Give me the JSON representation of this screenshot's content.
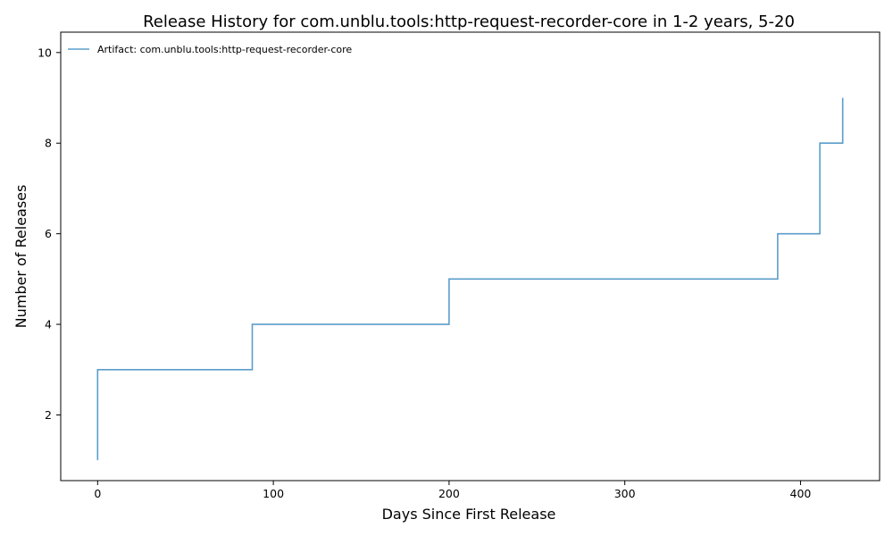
{
  "chart_data": {
    "type": "line",
    "step": "post",
    "title": "Release History for com.unblu.tools:http-request-recorder-core in 1-2 years, 5-20",
    "xlabel": "Days Since First Release",
    "ylabel": "Number of Releases",
    "xlim": [
      -21,
      445
    ],
    "ylim": [
      0.55,
      10.45
    ],
    "xticks": [
      0,
      100,
      200,
      300,
      400
    ],
    "yticks": [
      2,
      4,
      6,
      8,
      10
    ],
    "grid": false,
    "legend_position": "top-left",
    "series": [
      {
        "name": "Artifact: com.unblu.tools:http-request-recorder-core",
        "color": "#5b9dcb",
        "x": [
          0,
          0,
          0,
          88,
          200,
          387,
          411,
          411,
          424
        ],
        "y": [
          1,
          2,
          3,
          4,
          5,
          6,
          7,
          8,
          9
        ]
      }
    ]
  }
}
